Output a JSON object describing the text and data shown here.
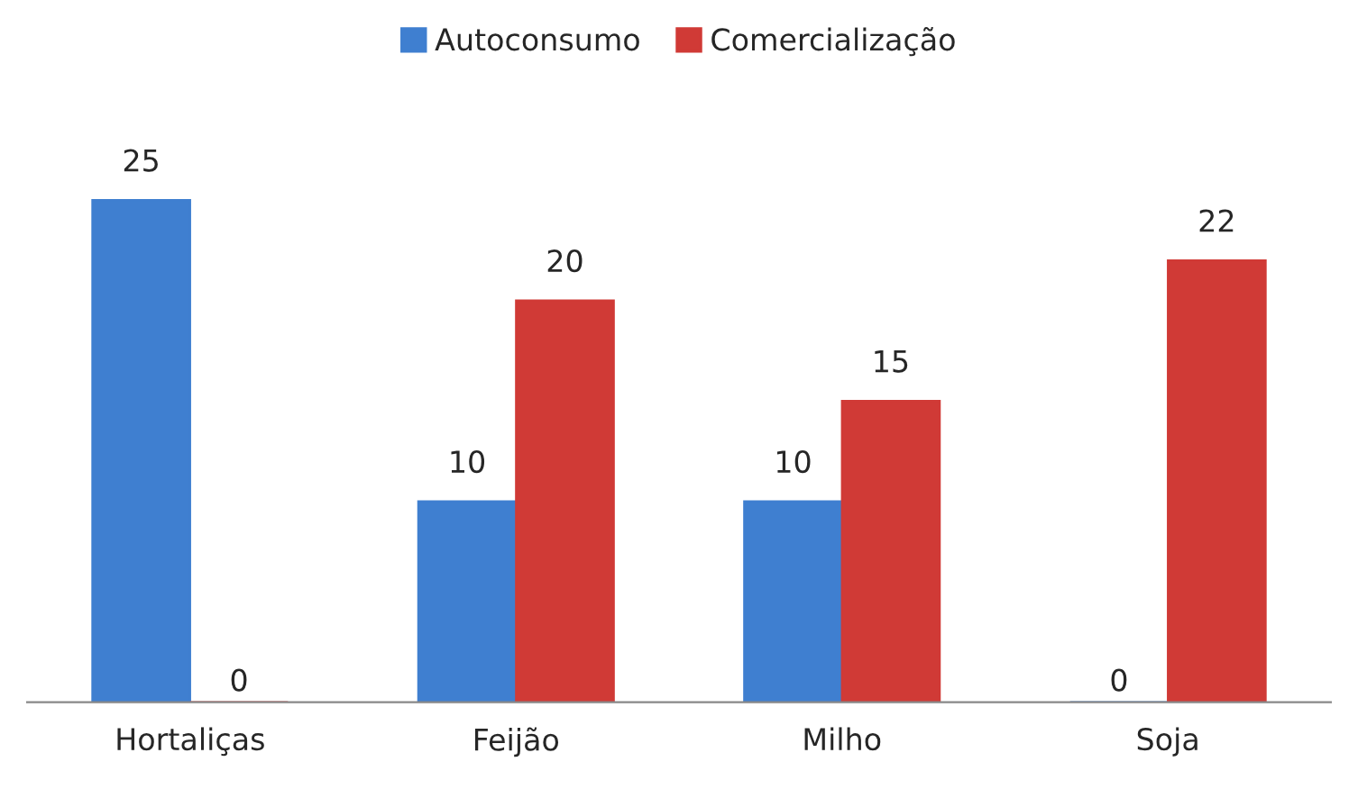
{
  "chart_data": {
    "type": "bar",
    "categories": [
      "Hortaliças",
      "Feijão",
      "Milho",
      "Soja"
    ],
    "series": [
      {
        "name": "Autoconsumo",
        "color": "#3f7fd0",
        "values": [
          25,
          10,
          10,
          0
        ]
      },
      {
        "name": "Comercialização",
        "color": "#d03a36",
        "values": [
          0,
          20,
          15,
          22
        ]
      }
    ],
    "data_labels": true,
    "legend": "top",
    "grid": false
  }
}
